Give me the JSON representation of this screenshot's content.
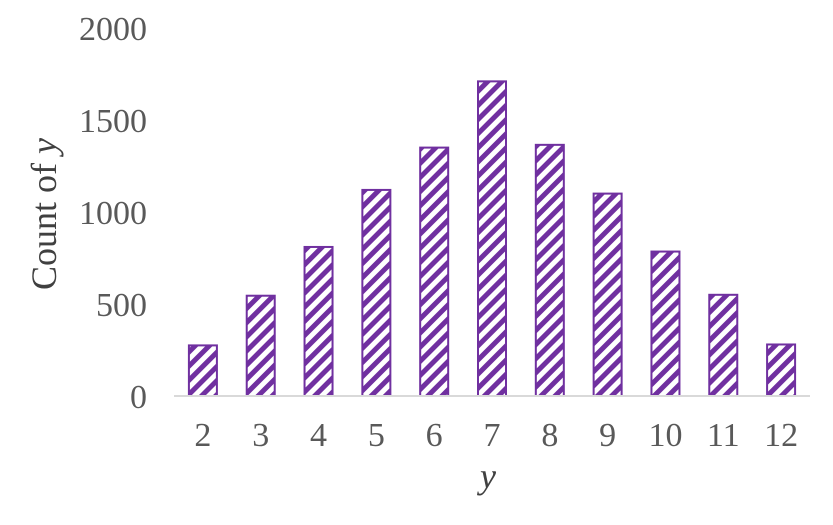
{
  "chart_data": {
    "type": "bar",
    "categories": [
      "2",
      "3",
      "4",
      "5",
      "6",
      "7",
      "8",
      "9",
      "10",
      "11",
      "12"
    ],
    "values": [
      275,
      545,
      810,
      1120,
      1350,
      1710,
      1365,
      1100,
      785,
      550,
      280
    ],
    "title": "",
    "xlabel": "y",
    "ylabel": {
      "prefix": "Count of ",
      "variable": "y"
    },
    "ylim": [
      0,
      2000
    ],
    "yticks": [
      "0",
      "500",
      "1000",
      "1500",
      "2000"
    ],
    "grid": false,
    "legend": "none",
    "bar_pattern": "diagonal-stripes",
    "colors": {
      "bar_stroke": "#7030a0",
      "bar_pattern": "#7030a0",
      "bar_fill": "#ffffff",
      "axis_line": "#d9d9d9",
      "tick_text": "#595959",
      "axis_title_text": "#404040"
    }
  }
}
